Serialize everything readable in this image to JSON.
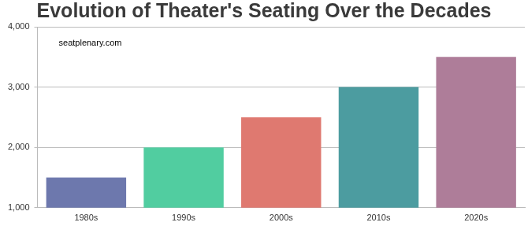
{
  "chart_data": {
    "type": "bar",
    "title": "Evolution of Theater's Seating Over the Decades",
    "subtitle": "seatplenary.com",
    "categories": [
      "1980s",
      "1990s",
      "2000s",
      "2010s",
      "2020s"
    ],
    "values": [
      1500,
      2000,
      2500,
      3000,
      3500
    ],
    "colors": [
      "#6d78ad",
      "#51cda0",
      "#df7970",
      "#4c9ca0",
      "#ae7d99"
    ],
    "ylim": [
      1000,
      4000
    ],
    "yticks": [
      {
        "value": 1000,
        "label": "1,000"
      },
      {
        "value": 2000,
        "label": "2,000"
      },
      {
        "value": 3000,
        "label": "3,000"
      },
      {
        "value": 4000,
        "label": "4,000"
      }
    ],
    "grid": true
  }
}
